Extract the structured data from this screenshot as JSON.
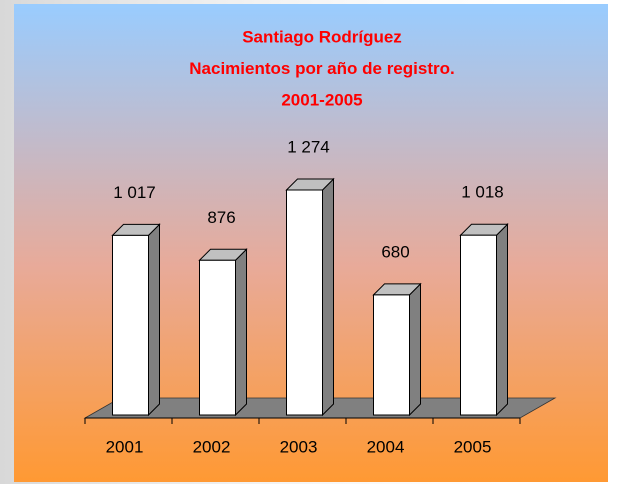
{
  "chart_data": {
    "type": "bar3d",
    "title": [
      "Santiago Rodríguez",
      "Nacimientos por año de registro.",
      "2001-2005"
    ],
    "categories": [
      "2001",
      "2002",
      "2003",
      "2004",
      "2005"
    ],
    "values": [
      1017,
      876,
      1274,
      680,
      1018
    ],
    "value_labels": [
      "1 017",
      "876",
      "1 274",
      "680",
      "1 018"
    ],
    "color": "#ffffff",
    "title_color": "#ff0000"
  }
}
